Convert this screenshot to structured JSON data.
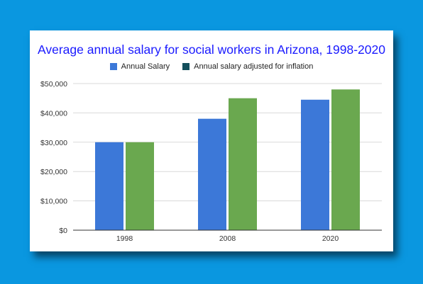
{
  "chart_data": {
    "type": "bar",
    "title": "Average annual salary for social workers in Arizona, 1998-2020",
    "categories": [
      "1998",
      "2008",
      "2020"
    ],
    "series": [
      {
        "name": "Annual Salary",
        "values": [
          30000,
          38000,
          44500
        ],
        "color": "#3c78d8"
      },
      {
        "name": "Annual salary adjusted for inflation",
        "values": [
          30000,
          45000,
          48000
        ],
        "color": "#6aa84f"
      }
    ],
    "legend_colors": [
      "#3c78d8",
      "#134f5c"
    ],
    "ylim": [
      0,
      50000
    ],
    "yticks": [
      0,
      10000,
      20000,
      30000,
      40000,
      50000
    ],
    "ytick_labels": [
      "$0",
      "$10,000",
      "$20,000",
      "$30,000",
      "$40,000",
      "$50,000"
    ],
    "legend_position": "top",
    "grid": true,
    "xlabel": "",
    "ylabel": ""
  }
}
